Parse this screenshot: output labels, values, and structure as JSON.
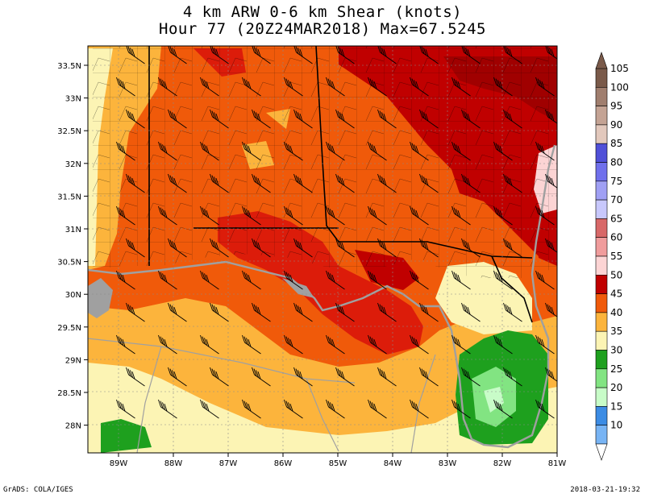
{
  "title": {
    "line1": "4 km ARW 0-6 km Shear (knots)",
    "line2": "Hour 77 (20Z24MAR2018) Max=67.5245"
  },
  "axes": {
    "lat_labels": [
      "33.5N",
      "33N",
      "32.5N",
      "32N",
      "31.5N",
      "31N",
      "30.5N",
      "30N",
      "29.5N",
      "29N",
      "28.5N",
      "28N"
    ],
    "lon_labels": [
      "89W",
      "88W",
      "87W",
      "86W",
      "85W",
      "84W",
      "83W",
      "82W",
      "81W"
    ]
  },
  "colorbar": {
    "levels": [
      "105",
      "100",
      "95",
      "90",
      "85",
      "80",
      "75",
      "70",
      "65",
      "60",
      "55",
      "50",
      "45",
      "40",
      "35",
      "30",
      "25",
      "20",
      "15",
      "10"
    ],
    "colors": [
      "#7a5a4a",
      "#a07e6e",
      "#c4a394",
      "#e2c8bc",
      "#5050d8",
      "#7070ec",
      "#a0a0f4",
      "#c8c8fc",
      "#d86868",
      "#f09c9c",
      "#fcd4d4",
      "#c00000",
      "#f05a0a",
      "#fcb43c",
      "#fcf4b4",
      "#1ea01e",
      "#82e482",
      "#c8fcc8",
      "#3c8ce4",
      "#78b4f4"
    ]
  },
  "footer": {
    "credit": "GrADS: COLA/IGES",
    "timestamp": "2018-03-21-19:32"
  },
  "palette": {
    "orange": "#f05a0a",
    "dark_red": "#c00000",
    "red": "#e01e0a",
    "light_orange": "#fcb43c",
    "pale_yellow": "#fcf4b4",
    "green": "#1ea01e",
    "light_green": "#82e482",
    "pale_pink": "#fcd4d4",
    "land_outline": "#a0a0a0"
  }
}
